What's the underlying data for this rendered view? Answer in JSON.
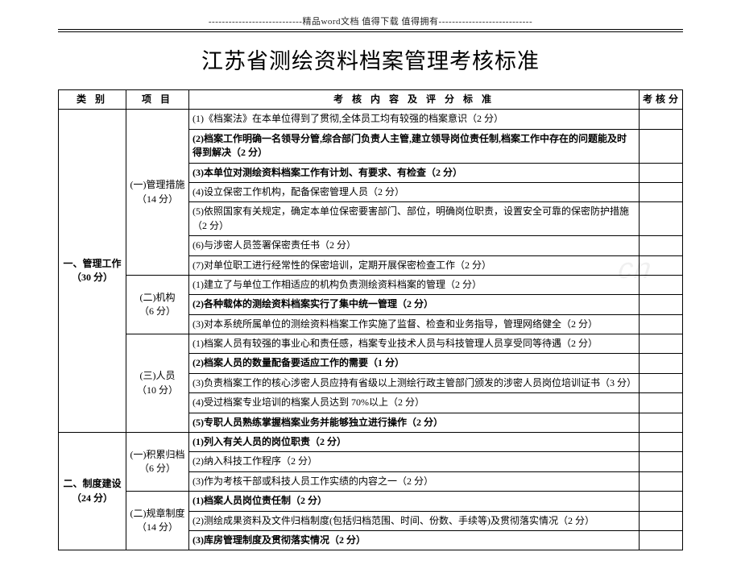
{
  "header_line": "----------------------------精品word文档  值得下载  值得拥有----------------------------",
  "title": "江苏省测绘资料档案管理考核标准",
  "watermark": "cn",
  "columns": {
    "c1": "类  别",
    "c2": "项  目",
    "c3": "考 核 内 容 及 评 分 标 准",
    "c4": "考核分"
  },
  "sections": [
    {
      "cat": "一、管理工作\n（30 分）",
      "groups": [
        {
          "proj": "(一)管理措施\n（14 分）",
          "rows": [
            {
              "text": "(1)《档案法》在本单位得到了贯彻,全体员工均有较强的档案意识（2 分）",
              "bold": false
            },
            {
              "text": "(2)档案工作明确一名领导分管,综合部门负责人主管,建立领导岗位责任制,档案工作中存在的问题能及时得到解决（2 分）",
              "bold": true
            },
            {
              "text": "(3)本单位对测绘资料档案工作有计划、有要求、有检查（2 分）",
              "bold": true
            },
            {
              "text": "(4)设立保密工作机构，配备保密管理人员（2 分）",
              "bold": false
            },
            {
              "text": "(5)依照国家有关规定，确定本单位保密要害部门、部位，明确岗位职责，设置安全可靠的保密防护措施（2 分）",
              "bold": false
            },
            {
              "text": "(6)与涉密人员签署保密责任书（2 分）",
              "bold": false
            },
            {
              "text": "(7)对单位职工进行经常性的保密培训，定期开展保密检查工作（2 分）",
              "bold": false
            }
          ]
        },
        {
          "proj": "(二)机构\n（6 分）",
          "rows": [
            {
              "text": "(1)建立了与单位工作相适应的机构负责测绘资料档案的管理（2 分）",
              "bold": false
            },
            {
              "text": "(2)各种载体的测绘资料档案实行了集中统一管理（2 分）",
              "bold": true
            },
            {
              "text": "(3)对本系统所属单位的测绘资料档案工作实施了监督、检查和业务指导，管理网络健全（2 分）",
              "bold": false
            }
          ]
        },
        {
          "proj": "(三)人员\n（10 分）",
          "rows": [
            {
              "text": "(1)档案人员有较强的事业心和责任感，档案专业技术人员与科技管理人员享受同等待遇（2 分）",
              "bold": false
            },
            {
              "text": "(2)档案人员的数量配备要适应工作的需要（1 分）",
              "bold": true
            },
            {
              "text": "(3)负责档案工作的核心涉密人员应持有省级以上测绘行政主管部门颁发的涉密人员岗位培训证书（3 分）",
              "bold": false
            },
            {
              "text": "(4)受过档案专业培训的档案人员达到 70%以上（2 分）",
              "bold": false
            },
            {
              "text": "(5)专职人员熟练掌握档案业务并能够独立进行操作（2 分）",
              "bold": true
            }
          ]
        }
      ]
    },
    {
      "cat": "二、制度建设\n（24 分）",
      "groups": [
        {
          "proj": "(一)积累归档\n（6 分）",
          "rows": [
            {
              "text": "(1)列入有关人员的岗位职责（2 分）",
              "bold": true
            },
            {
              "text": "(2)纳入科技工作程序（2 分）",
              "bold": false
            },
            {
              "text": "(3)作为考核干部或科技人员工作实绩的内容之一（2 分）",
              "bold": false
            }
          ]
        },
        {
          "proj": "(二)规章制度\n（14 分）",
          "rows": [
            {
              "text": "(1)档案人员岗位责任制（2 分）",
              "bold": true
            },
            {
              "text": "(2)测绘成果资料及文件归档制度(包括归档范围、时间、份数、手续等)及贯彻落实情况（2 分）",
              "bold": false
            },
            {
              "text": "(3)库房管理制度及贯彻落实情况（2 分）",
              "bold": true
            }
          ]
        }
      ]
    }
  ]
}
